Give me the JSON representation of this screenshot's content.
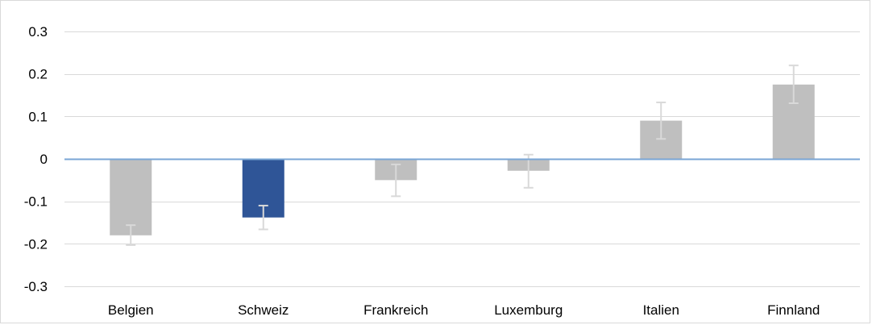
{
  "chart_data": {
    "type": "bar",
    "title": "",
    "xlabel": "",
    "ylabel": "",
    "categories": [
      "Belgien",
      "Schweiz",
      "Frankreich",
      "Luxemburg",
      "Italien",
      "Finnland"
    ],
    "values": [
      -0.18,
      -0.138,
      -0.05,
      -0.028,
      0.09,
      0.175
    ],
    "error_low": [
      -0.203,
      -0.166,
      -0.088,
      -0.068,
      0.047,
      0.131
    ],
    "error_high": [
      -0.156,
      -0.11,
      -0.013,
      0.01,
      0.133,
      0.22
    ],
    "ylim": [
      -0.3,
      0.3
    ],
    "yticks": [
      0.3,
      0.2,
      0.1,
      0,
      -0.1,
      -0.2,
      -0.3
    ],
    "ytick_labels": [
      "0.3",
      "0.2",
      "0.1",
      "0",
      "-0.1",
      "-0.2",
      "-0.3"
    ],
    "grid": true,
    "legend": "none",
    "colors": {
      "default_bar": "#bfbfbf",
      "highlight_bar": "#2f5597",
      "zero_line": "#7aa6d6",
      "grid": "#d9d9d9",
      "error_bar": "#d9d9d9"
    },
    "highlight_index": 1
  }
}
